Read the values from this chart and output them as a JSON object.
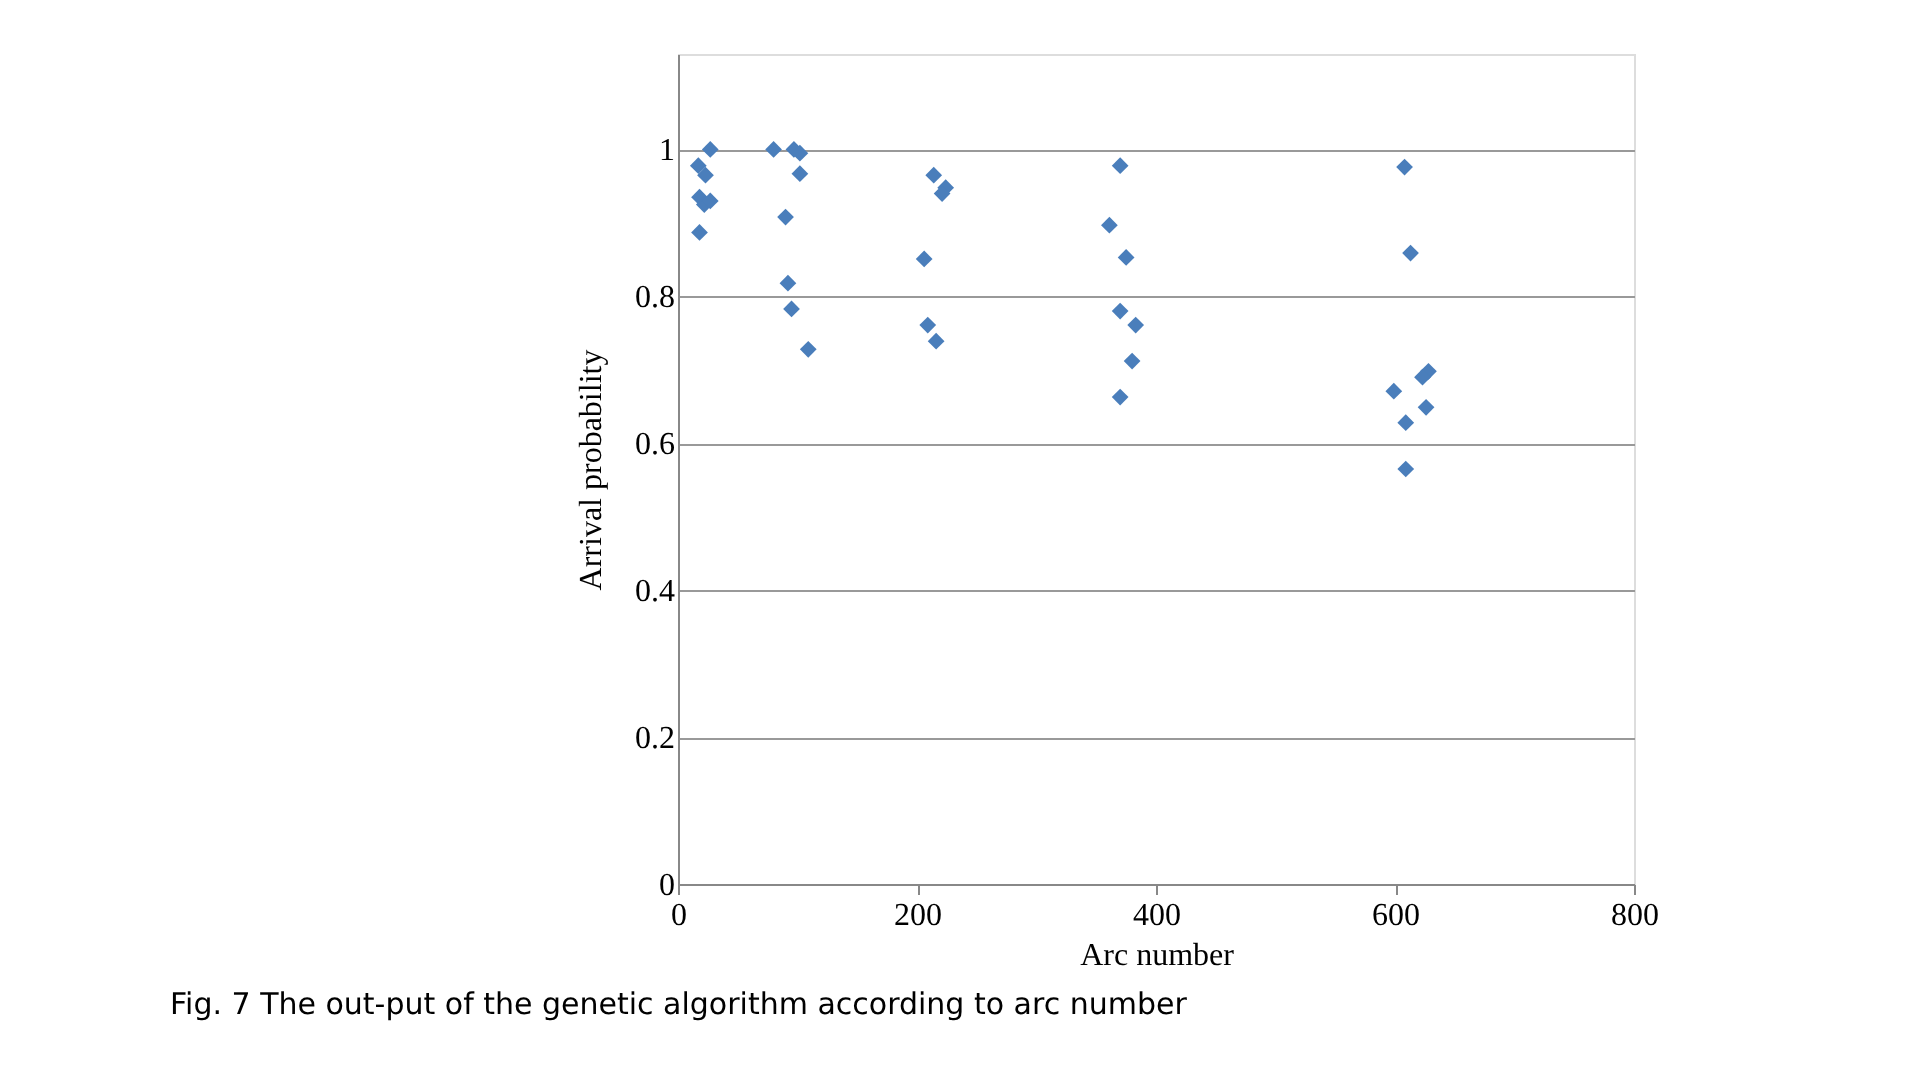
{
  "chart_data": {
    "type": "scatter",
    "xlabel": "Arc number",
    "ylabel": "Arrival probability",
    "annotations": [
      "Fig. 7  The out-put of the genetic algorithm according to arc number"
    ],
    "series": [
      {
        "color": "#4a7ebb",
        "x": [
          27,
          17,
          23,
          18,
          22,
          27,
          18,
          80,
          97,
          102,
          102,
          90,
          92,
          95,
          109,
          206,
          214,
          224,
          221,
          209,
          216,
          370,
          361,
          375,
          370,
          383,
          380,
          370,
          608,
          613,
          599,
          628,
          623,
          626,
          609,
          609
        ],
        "values": [
          1.0,
          0.978,
          0.965,
          0.935,
          0.925,
          0.93,
          0.887,
          1.0,
          1.0,
          0.995,
          0.967,
          0.908,
          0.818,
          0.783,
          0.728,
          0.851,
          0.965,
          0.948,
          0.94,
          0.761,
          0.739,
          0.978,
          0.897,
          0.853,
          0.78,
          0.761,
          0.712,
          0.663,
          0.976,
          0.859,
          0.671,
          0.698,
          0.69,
          0.649,
          0.628,
          0.565
        ]
      }
    ],
    "xlim": [
      0,
      800
    ],
    "xticks": [
      0,
      200,
      400,
      600,
      800
    ],
    "ylim": [
      0,
      1.13
    ],
    "yticks": [
      0,
      0.2,
      0.4,
      0.6,
      0.8,
      1
    ],
    "grid": "y",
    "marker": "diamond",
    "legend": false
  }
}
